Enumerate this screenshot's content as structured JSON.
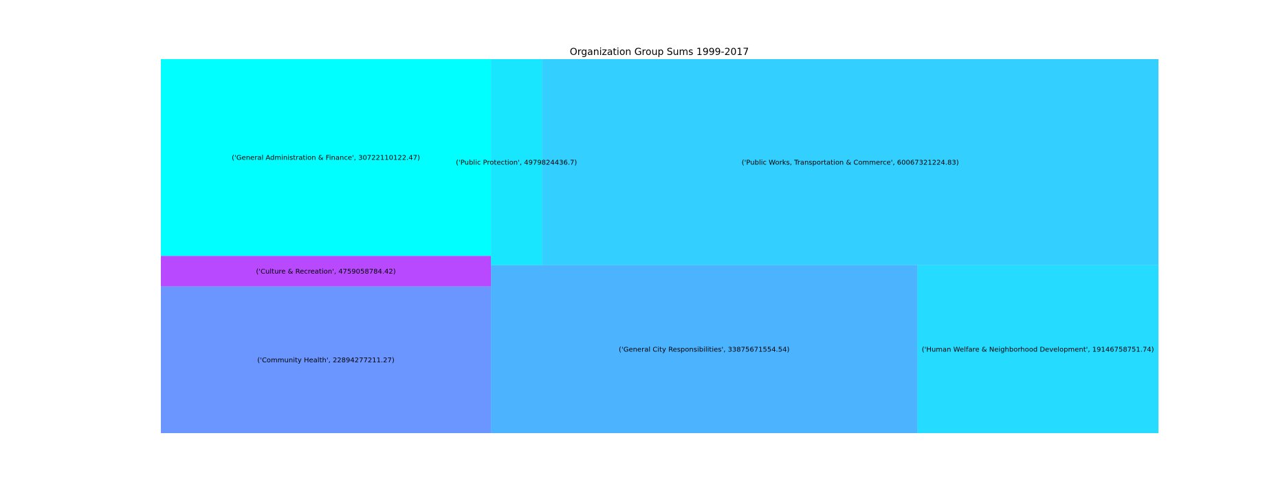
{
  "chart_data": {
    "type": "treemap",
    "title": "Organization Group Sums 1999-2017",
    "series": [
      {
        "label": "('General Administration & Finance', 30722110122.47)",
        "value": 30722110122.47,
        "color": "#00ffff"
      },
      {
        "label": "('Culture & Recreation', 4759058784.42)",
        "value": 4759058784.42,
        "color": "#b849ff"
      },
      {
        "label": "('Community Health', 22894277211.27)",
        "value": 22894277211.27,
        "color": "#6b96ff"
      },
      {
        "label": "('Public Protection', 4979824436.7)",
        "value": 4979824436.7,
        "color": "#18e6ff"
      },
      {
        "label": "('Public Works, Transportation & Commerce', 60067321224.83)",
        "value": 60067321224.83,
        "color": "#33cfff"
      },
      {
        "label": "('General City Responsibilities', 33875671554.54)",
        "value": 33875671554.54,
        "color": "#4cb3ff"
      },
      {
        "label": "('Human Welfare & Neighborhood Development', 19146758751.74)",
        "value": 19146758751.74,
        "color": "#25dbff"
      }
    ]
  }
}
